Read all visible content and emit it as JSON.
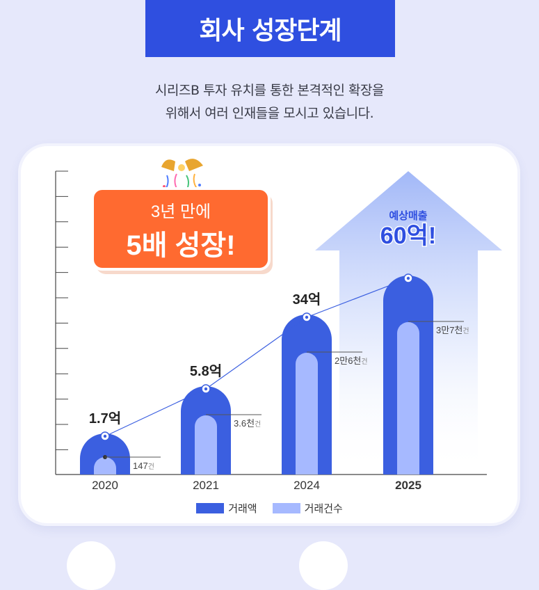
{
  "header": {
    "title": "회사 성장단계"
  },
  "intro": {
    "line1": "시리즈B 투자 유치를 통한 본격적인 확장을",
    "line2": "위해서 여러 인재들을 모시고 있습니다."
  },
  "badge": {
    "line1": "3년 만에",
    "line2": "5배 성장!"
  },
  "forecast": {
    "label": "예상매출",
    "value": "60억!"
  },
  "legend": {
    "revenue": "거래액",
    "count": "거래건수"
  },
  "colors": {
    "title_bg": "#2f4fe0",
    "revenue": "#3b5fe0",
    "count": "#a6b9ff",
    "badge": "#ff6a30",
    "line": "#3b5fe0"
  },
  "chart_data": {
    "type": "bar",
    "categories": [
      "2020",
      "2021",
      "2024",
      "2025"
    ],
    "series": [
      {
        "name": "거래액",
        "values": [
          1.7,
          5.8,
          34,
          60
        ]
      },
      {
        "name": "거래건수",
        "values": [
          147,
          3600,
          26000,
          37000
        ]
      }
    ],
    "value_labels": [
      "1.7억",
      "5.8억",
      "34억",
      ""
    ],
    "count_labels": [
      "147",
      "3.6천",
      "2만6천",
      "3만7천"
    ],
    "count_unit": "건",
    "revenue_heights": [
      1.7,
      5.8,
      34,
      60
    ],
    "ymax": 65
  }
}
